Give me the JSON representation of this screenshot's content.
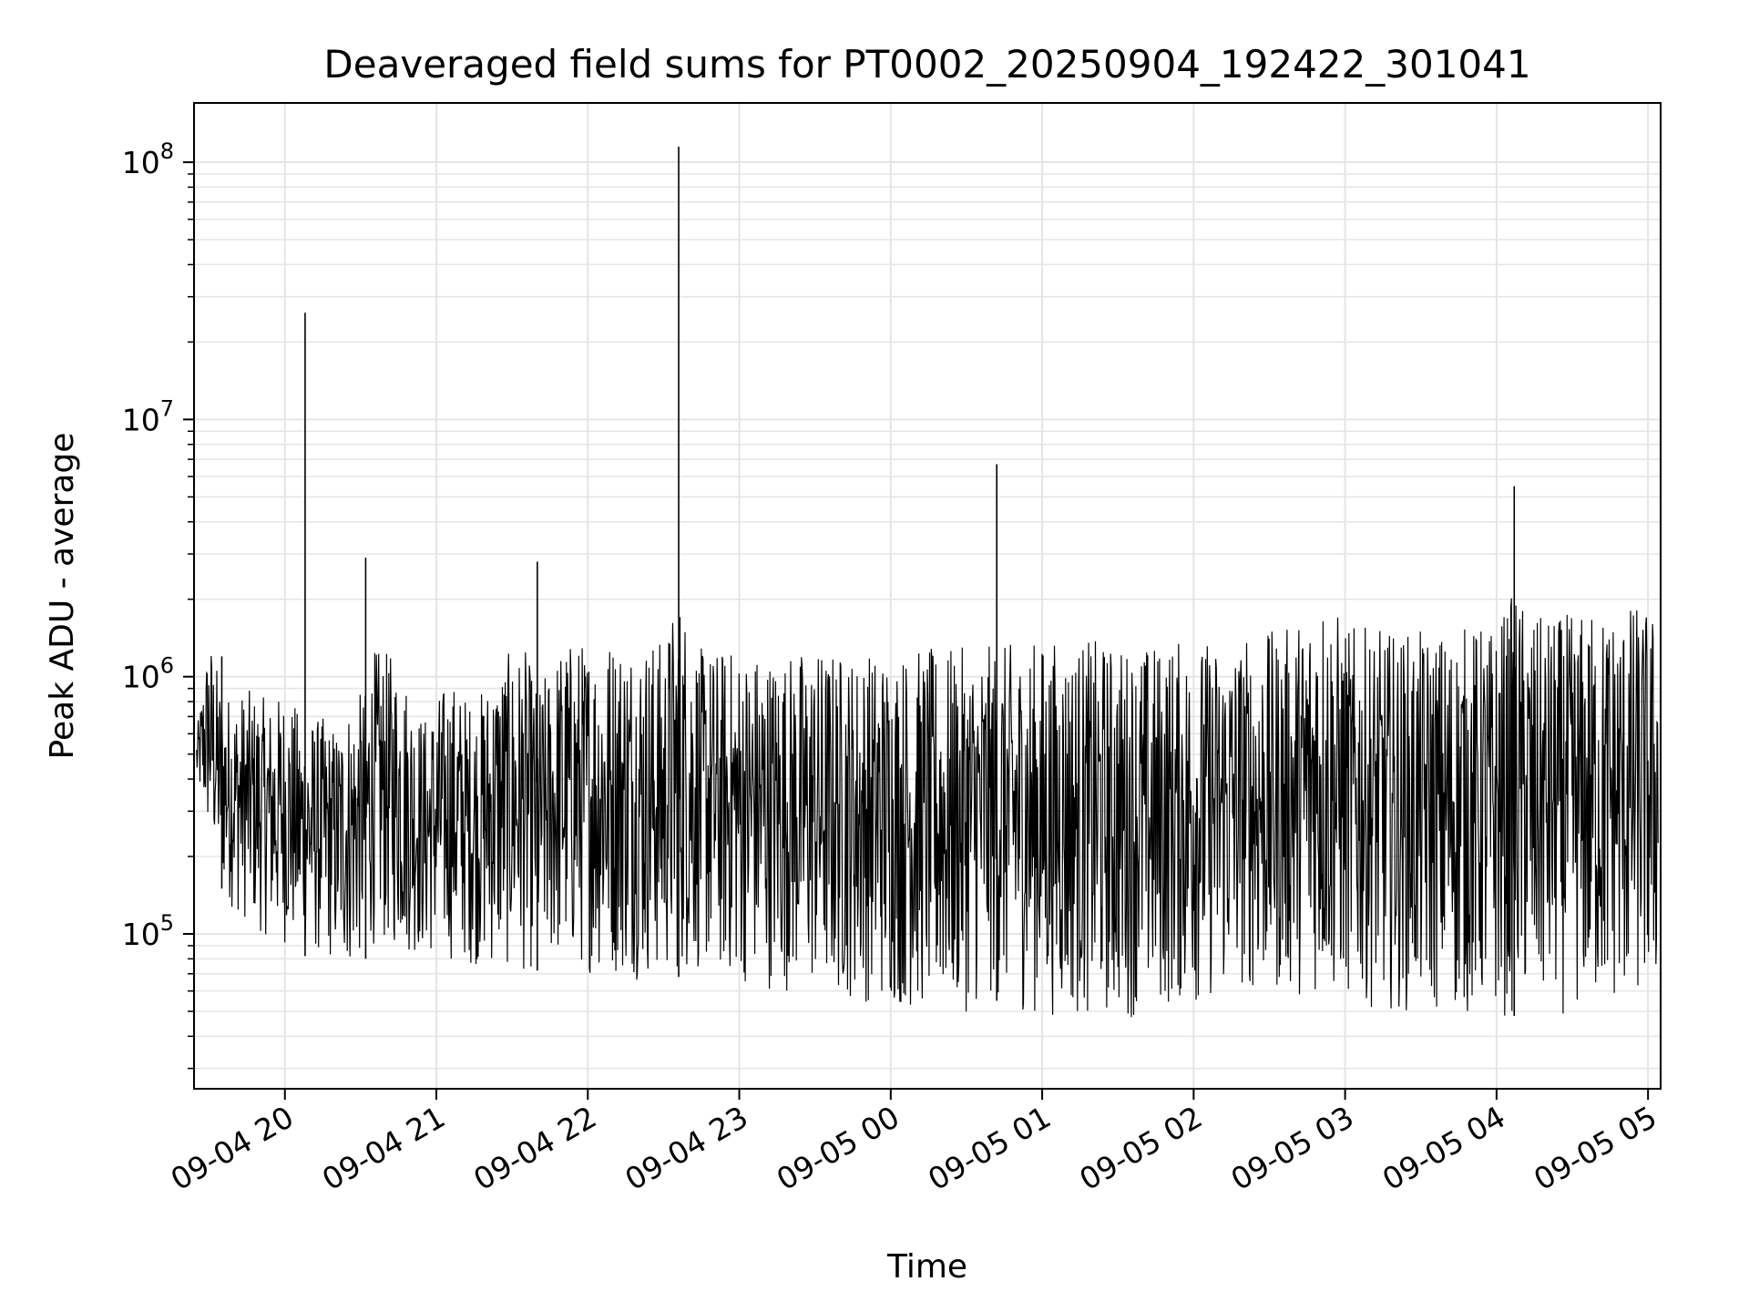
{
  "chart_data": {
    "type": "line",
    "title": "Deaveraged field sums for PT0002_20250904_192422_301041",
    "xlabel": "Time",
    "ylabel": "Peak ADU - average",
    "yscale": "log",
    "ylim": [
      25000,
      170000000
    ],
    "xlim": [
      "2025-09-04 19:24",
      "2025-09-05 05:05"
    ],
    "grid": true,
    "line_color": "#000000",
    "grid_color": "#e5e5e5",
    "x_ticks": [
      {
        "t": "2025-09-04 20:00",
        "label": "09-04 20"
      },
      {
        "t": "2025-09-04 21:00",
        "label": "09-04 21"
      },
      {
        "t": "2025-09-04 22:00",
        "label": "09-04 22"
      },
      {
        "t": "2025-09-04 23:00",
        "label": "09-04 23"
      },
      {
        "t": "2025-09-05 00:00",
        "label": "09-05 00"
      },
      {
        "t": "2025-09-05 01:00",
        "label": "09-05 01"
      },
      {
        "t": "2025-09-05 02:00",
        "label": "09-05 02"
      },
      {
        "t": "2025-09-05 03:00",
        "label": "09-05 03"
      },
      {
        "t": "2025-09-05 04:00",
        "label": "09-05 04"
      },
      {
        "t": "2025-09-05 05:00",
        "label": "09-05 05"
      }
    ],
    "y_ticks": [
      {
        "value": 100000,
        "base": "10",
        "exp": "5"
      },
      {
        "value": 1000000,
        "base": "10",
        "exp": "6"
      },
      {
        "value": 10000000,
        "base": "10",
        "exp": "7"
      },
      {
        "value": 100000000,
        "base": "10",
        "exp": "8"
      }
    ],
    "series": [
      {
        "values_note_none": "",
        "x": [
          "2025-09-04 19:25",
          "2025-09-04 19:30",
          "2025-09-04 19:35",
          "2025-09-04 19:40",
          "2025-09-04 19:45",
          "2025-09-04 19:50",
          "2025-09-04 19:55",
          "2025-09-04 20:00",
          "2025-09-04 20:05",
          "2025-09-04 20:08",
          "2025-09-04 20:15",
          "2025-09-04 20:20",
          "2025-09-04 20:25",
          "2025-09-04 20:32",
          "2025-09-04 20:35",
          "2025-09-04 20:45",
          "2025-09-04 20:55",
          "2025-09-04 21:05",
          "2025-09-04 21:15",
          "2025-09-04 21:25",
          "2025-09-04 21:35",
          "2025-09-04 21:40",
          "2025-09-04 21:50",
          "2025-09-04 22:00",
          "2025-09-04 22:10",
          "2025-09-04 22:20",
          "2025-09-04 22:30",
          "2025-09-04 22:36",
          "2025-09-04 22:45",
          "2025-09-04 22:55",
          "2025-09-04 23:05",
          "2025-09-04 23:15",
          "2025-09-04 23:25",
          "2025-09-04 23:35",
          "2025-09-04 23:45",
          "2025-09-04 23:55",
          "2025-09-05 00:05",
          "2025-09-05 00:15",
          "2025-09-05 00:25",
          "2025-09-05 00:35",
          "2025-09-05 00:42",
          "2025-09-05 00:50",
          "2025-09-05 01:00",
          "2025-09-05 01:10",
          "2025-09-05 01:20",
          "2025-09-05 01:30",
          "2025-09-05 01:40",
          "2025-09-05 01:50",
          "2025-09-05 02:00",
          "2025-09-05 02:10",
          "2025-09-05 02:20",
          "2025-09-05 02:30",
          "2025-09-05 02:40",
          "2025-09-05 02:50",
          "2025-09-05 03:00",
          "2025-09-05 03:10",
          "2025-09-05 03:20",
          "2025-09-05 03:30",
          "2025-09-05 03:40",
          "2025-09-05 03:50",
          "2025-09-05 04:00",
          "2025-09-05 04:07",
          "2025-09-05 04:15",
          "2025-09-05 04:25",
          "2025-09-05 04:35",
          "2025-09-05 04:45",
          "2025-09-05 04:55",
          "2025-09-05 05:04"
        ],
        "values": [
          450000,
          520000,
          1200000,
          500000,
          420000,
          380000,
          350000,
          330000,
          300000,
          26000000,
          280000,
          250000,
          330000,
          2900000,
          260000,
          230000,
          220000,
          200000,
          180000,
          190000,
          170000,
          2800000,
          175000,
          160000,
          170000,
          165000,
          175000,
          115000000,
          200000,
          210000,
          190000,
          180000,
          170000,
          160000,
          150000,
          140000,
          160000,
          140000,
          150000,
          170000,
          6700000,
          220000,
          250000,
          260000,
          280000,
          300000,
          320000,
          350000,
          400000,
          500000,
          650000,
          700000,
          600000,
          550000,
          500000,
          450000,
          430000,
          400000,
          380000,
          350000,
          340000,
          5500000,
          320000,
          300000,
          290000,
          310000,
          330000,
          350000
        ],
        "band_low": [
          380000,
          220000,
          150000,
          120000,
          110000,
          100000,
          95000,
          90000,
          85000,
          82000,
          80000,
          75000,
          70000,
          80000,
          90000,
          85000,
          80000,
          78000,
          75000,
          72000,
          70000,
          72000,
          74000,
          70000,
          68000,
          66000,
          65000,
          68000,
          70000,
          65000,
          62000,
          60000,
          58000,
          56000,
          55000,
          52000,
          50000,
          48000,
          47000,
          52000,
          55000,
          50000,
          48000,
          47000,
          47000,
          46000,
          48000,
          50000,
          52000,
          55000,
          60000,
          55000,
          58000,
          56000,
          54000,
          52000,
          50000,
          49000,
          48000,
          47000,
          46000,
          48000,
          47000,
          48000,
          49000,
          50000,
          52000,
          55000
        ],
        "band_high": [
          600000,
          1500000,
          900000,
          850000,
          900000,
          850000,
          800000,
          900000,
          750000,
          700000,
          700000,
          650000,
          800000,
          900000,
          1300000,
          1200000,
          700000,
          1000000,
          800000,
          1200000,
          1300000,
          900000,
          1400000,
          1400000,
          1500000,
          1500000,
          1400000,
          2200000,
          1300000,
          1300000,
          1300000,
          1250000,
          1300000,
          1300000,
          1250000,
          1300000,
          1300000,
          1300000,
          1300000,
          1300000,
          1350000,
          1350000,
          1400000,
          1400000,
          1400000,
          1350000,
          1350000,
          1400000,
          1400000,
          1400000,
          1450000,
          1500000,
          1600000,
          2400000,
          1600000,
          1550000,
          1500000,
          1500000,
          1550000,
          1600000,
          1600000,
          2200000,
          1700000,
          1750000,
          1800000,
          1900000,
          1950000,
          1800000
        ]
      }
    ]
  }
}
